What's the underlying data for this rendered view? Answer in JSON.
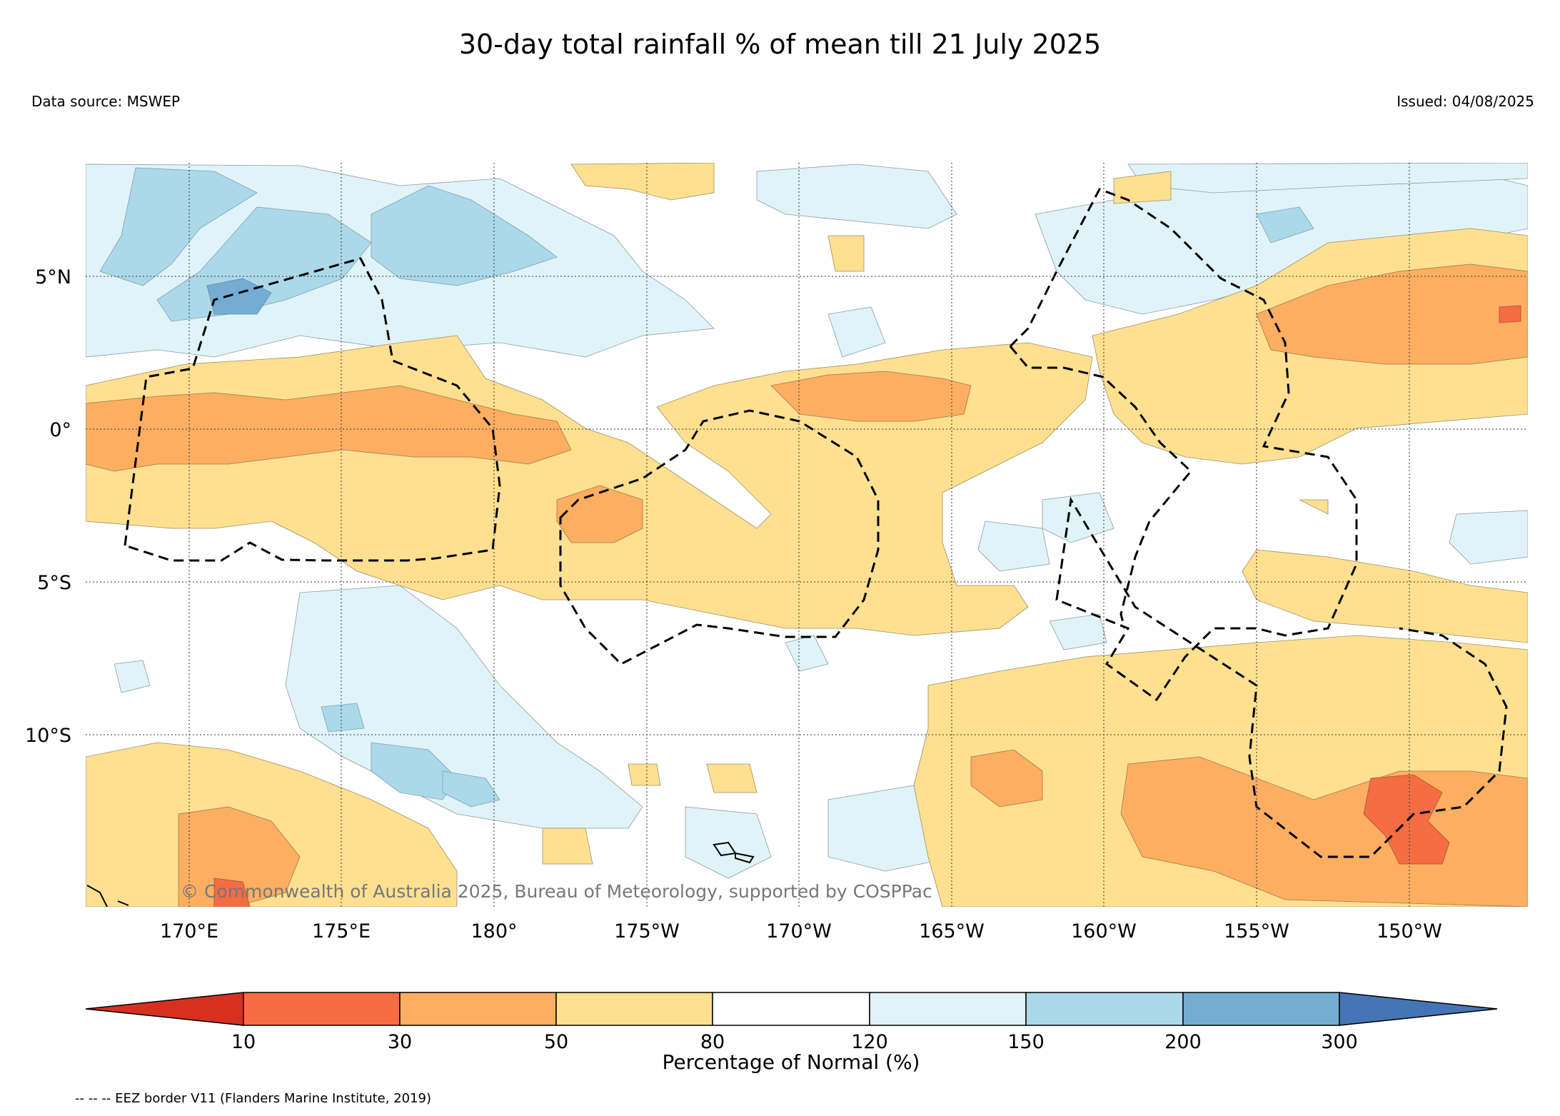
{
  "title": "30-day total rainfall % of mean till 21 July 2025",
  "data_source": "Data source: MSWEP",
  "issued": "Issued: 04/08/2025",
  "copyright": "© Commonwealth of Australia 2025, Bureau of Meteorology, supported by COSPPac",
  "footnote": "-- -- -- EEZ border V11 (Flanders Marine Institute, 2019)",
  "map": {
    "lat_labels": [
      "5°N",
      "0°",
      "5°S",
      "10°S"
    ],
    "lon_labels": [
      "170°E",
      "175°E",
      "180°",
      "175°W",
      "170°W",
      "165°W",
      "160°W",
      "155°W",
      "150°W"
    ],
    "grid": "dotted"
  },
  "legend": {
    "label": "Percentage of Normal (%)",
    "ticks": [
      "10",
      "30",
      "50",
      "80",
      "120",
      "150",
      "200",
      "300"
    ],
    "colors": [
      "#d7301f",
      "#f46d43",
      "#fdae61",
      "#fee090",
      "#ffffff",
      "#e0f3f8",
      "#abd9e9",
      "#74add1",
      "#4575b4"
    ]
  }
}
